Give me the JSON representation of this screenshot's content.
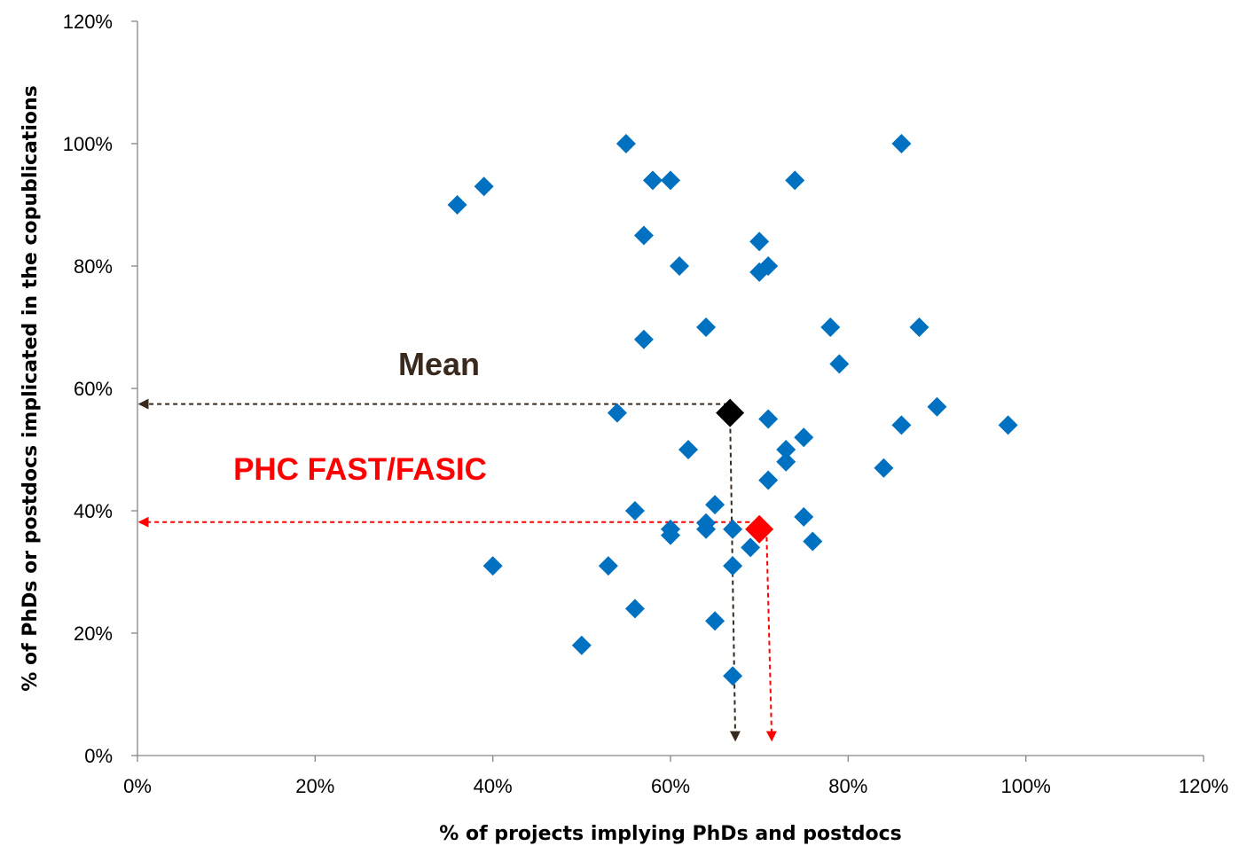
{
  "chart_data": {
    "type": "scatter",
    "xlabel": "% of projects implying PhDs and postdocs",
    "ylabel": "% of PhDs or postdocs implicated in the copublications",
    "xlim": [
      0,
      1.2
    ],
    "ylim": [
      0,
      1.2
    ],
    "x_ticks": [
      0,
      0.2,
      0.4,
      0.6,
      0.8,
      1.0,
      1.2
    ],
    "y_ticks": [
      0,
      0.2,
      0.4,
      0.6,
      0.8,
      1.0,
      1.2
    ],
    "tick_labels_x": [
      "0%",
      "20%",
      "40%",
      "60%",
      "80%",
      "100%",
      "120%"
    ],
    "tick_labels_y": [
      "0%",
      "20%",
      "40%",
      "60%",
      "80%",
      "100%",
      "120%"
    ],
    "grid": false,
    "legend": "none",
    "series": [
      {
        "color": "#0070C0",
        "marker": "diamond",
        "points": [
          [
            0.36,
            0.9
          ],
          [
            0.39,
            0.93
          ],
          [
            0.4,
            0.31
          ],
          [
            0.5,
            0.18
          ],
          [
            0.53,
            0.31
          ],
          [
            0.54,
            0.56
          ],
          [
            0.55,
            1.0
          ],
          [
            0.56,
            0.4
          ],
          [
            0.56,
            0.24
          ],
          [
            0.57,
            0.85
          ],
          [
            0.57,
            0.68
          ],
          [
            0.58,
            0.94
          ],
          [
            0.6,
            0.94
          ],
          [
            0.6,
            0.37
          ],
          [
            0.6,
            0.36
          ],
          [
            0.61,
            0.8
          ],
          [
            0.62,
            0.5
          ],
          [
            0.64,
            0.7
          ],
          [
            0.64,
            0.38
          ],
          [
            0.64,
            0.37
          ],
          [
            0.65,
            0.41
          ],
          [
            0.65,
            0.22
          ],
          [
            0.67,
            0.37
          ],
          [
            0.67,
            0.31
          ],
          [
            0.67,
            0.13
          ],
          [
            0.69,
            0.34
          ],
          [
            0.7,
            0.84
          ],
          [
            0.7,
            0.79
          ],
          [
            0.71,
            0.8
          ],
          [
            0.71,
            0.55
          ],
          [
            0.71,
            0.45
          ],
          [
            0.73,
            0.5
          ],
          [
            0.73,
            0.48
          ],
          [
            0.74,
            0.94
          ],
          [
            0.75,
            0.52
          ],
          [
            0.75,
            0.39
          ],
          [
            0.76,
            0.35
          ],
          [
            0.78,
            0.7
          ],
          [
            0.79,
            0.64
          ],
          [
            0.84,
            0.47
          ],
          [
            0.86,
            1.0
          ],
          [
            0.86,
            0.54
          ],
          [
            0.88,
            0.7
          ],
          [
            0.9,
            0.57
          ],
          [
            0.98,
            0.54
          ]
        ]
      }
    ],
    "highlights": [
      {
        "label": "Mean",
        "x": 0.667,
        "y": 0.56,
        "color": "#000000",
        "label_color": "#3A2A1E",
        "arrow_color": "#3A2A1E"
      },
      {
        "label": "PHC FAST/FASIC",
        "x": 0.7,
        "y": 0.37,
        "color": "#FF0000",
        "label_color": "#FF0000",
        "arrow_color": "#FF0000"
      }
    ]
  }
}
